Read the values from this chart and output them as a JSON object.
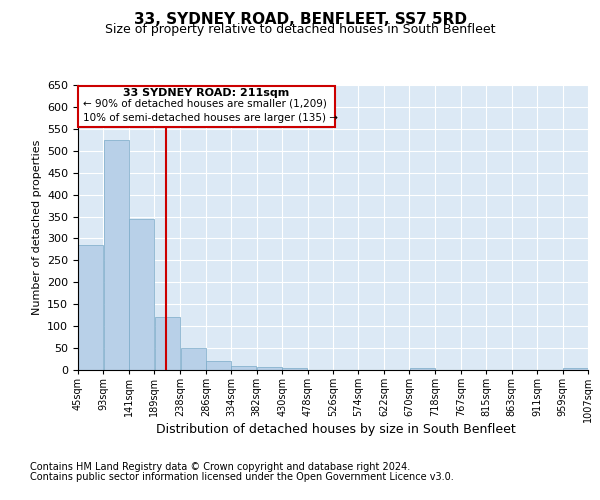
{
  "title": "33, SYDNEY ROAD, BENFLEET, SS7 5RD",
  "subtitle": "Size of property relative to detached houses in South Benfleet",
  "xlabel": "Distribution of detached houses by size in South Benfleet",
  "ylabel": "Number of detached properties",
  "footnote1": "Contains HM Land Registry data © Crown copyright and database right 2024.",
  "footnote2": "Contains public sector information licensed under the Open Government Licence v3.0.",
  "annotation_line1": "33 SYDNEY ROAD: 211sqm",
  "annotation_line2": "← 90% of detached houses are smaller (1,209)",
  "annotation_line3": "10% of semi-detached houses are larger (135) →",
  "bar_color": "#b8d0e8",
  "bar_edge_color": "#7aaac8",
  "redline_x": 211,
  "bins": [
    45,
    93,
    141,
    189,
    238,
    286,
    334,
    382,
    430,
    478,
    526,
    574,
    622,
    670,
    718,
    767,
    815,
    863,
    911,
    959,
    1007
  ],
  "bin_labels": [
    "45sqm",
    "93sqm",
    "141sqm",
    "189sqm",
    "238sqm",
    "286sqm",
    "334sqm",
    "382sqm",
    "430sqm",
    "478sqm",
    "526sqm",
    "574sqm",
    "622sqm",
    "670sqm",
    "718sqm",
    "767sqm",
    "815sqm",
    "863sqm",
    "911sqm",
    "959sqm",
    "1007sqm"
  ],
  "values": [
    285,
    525,
    345,
    120,
    50,
    20,
    10,
    7,
    4,
    0,
    0,
    0,
    0,
    5,
    0,
    0,
    0,
    0,
    0,
    5
  ],
  "ylim": [
    0,
    650
  ],
  "yticks": [
    0,
    50,
    100,
    150,
    200,
    250,
    300,
    350,
    400,
    450,
    500,
    550,
    600,
    650
  ],
  "background_color": "#dce9f5",
  "fig_background": "#ffffff",
  "annotation_box_color": "#ffffff",
  "annotation_box_edge": "#cc0000",
  "redline_color": "#cc0000",
  "title_fontsize": 11,
  "subtitle_fontsize": 9,
  "ylabel_fontsize": 8,
  "tick_fontsize": 8,
  "xtick_fontsize": 7,
  "annot_fontsize": 8,
  "footnote_fontsize": 7
}
